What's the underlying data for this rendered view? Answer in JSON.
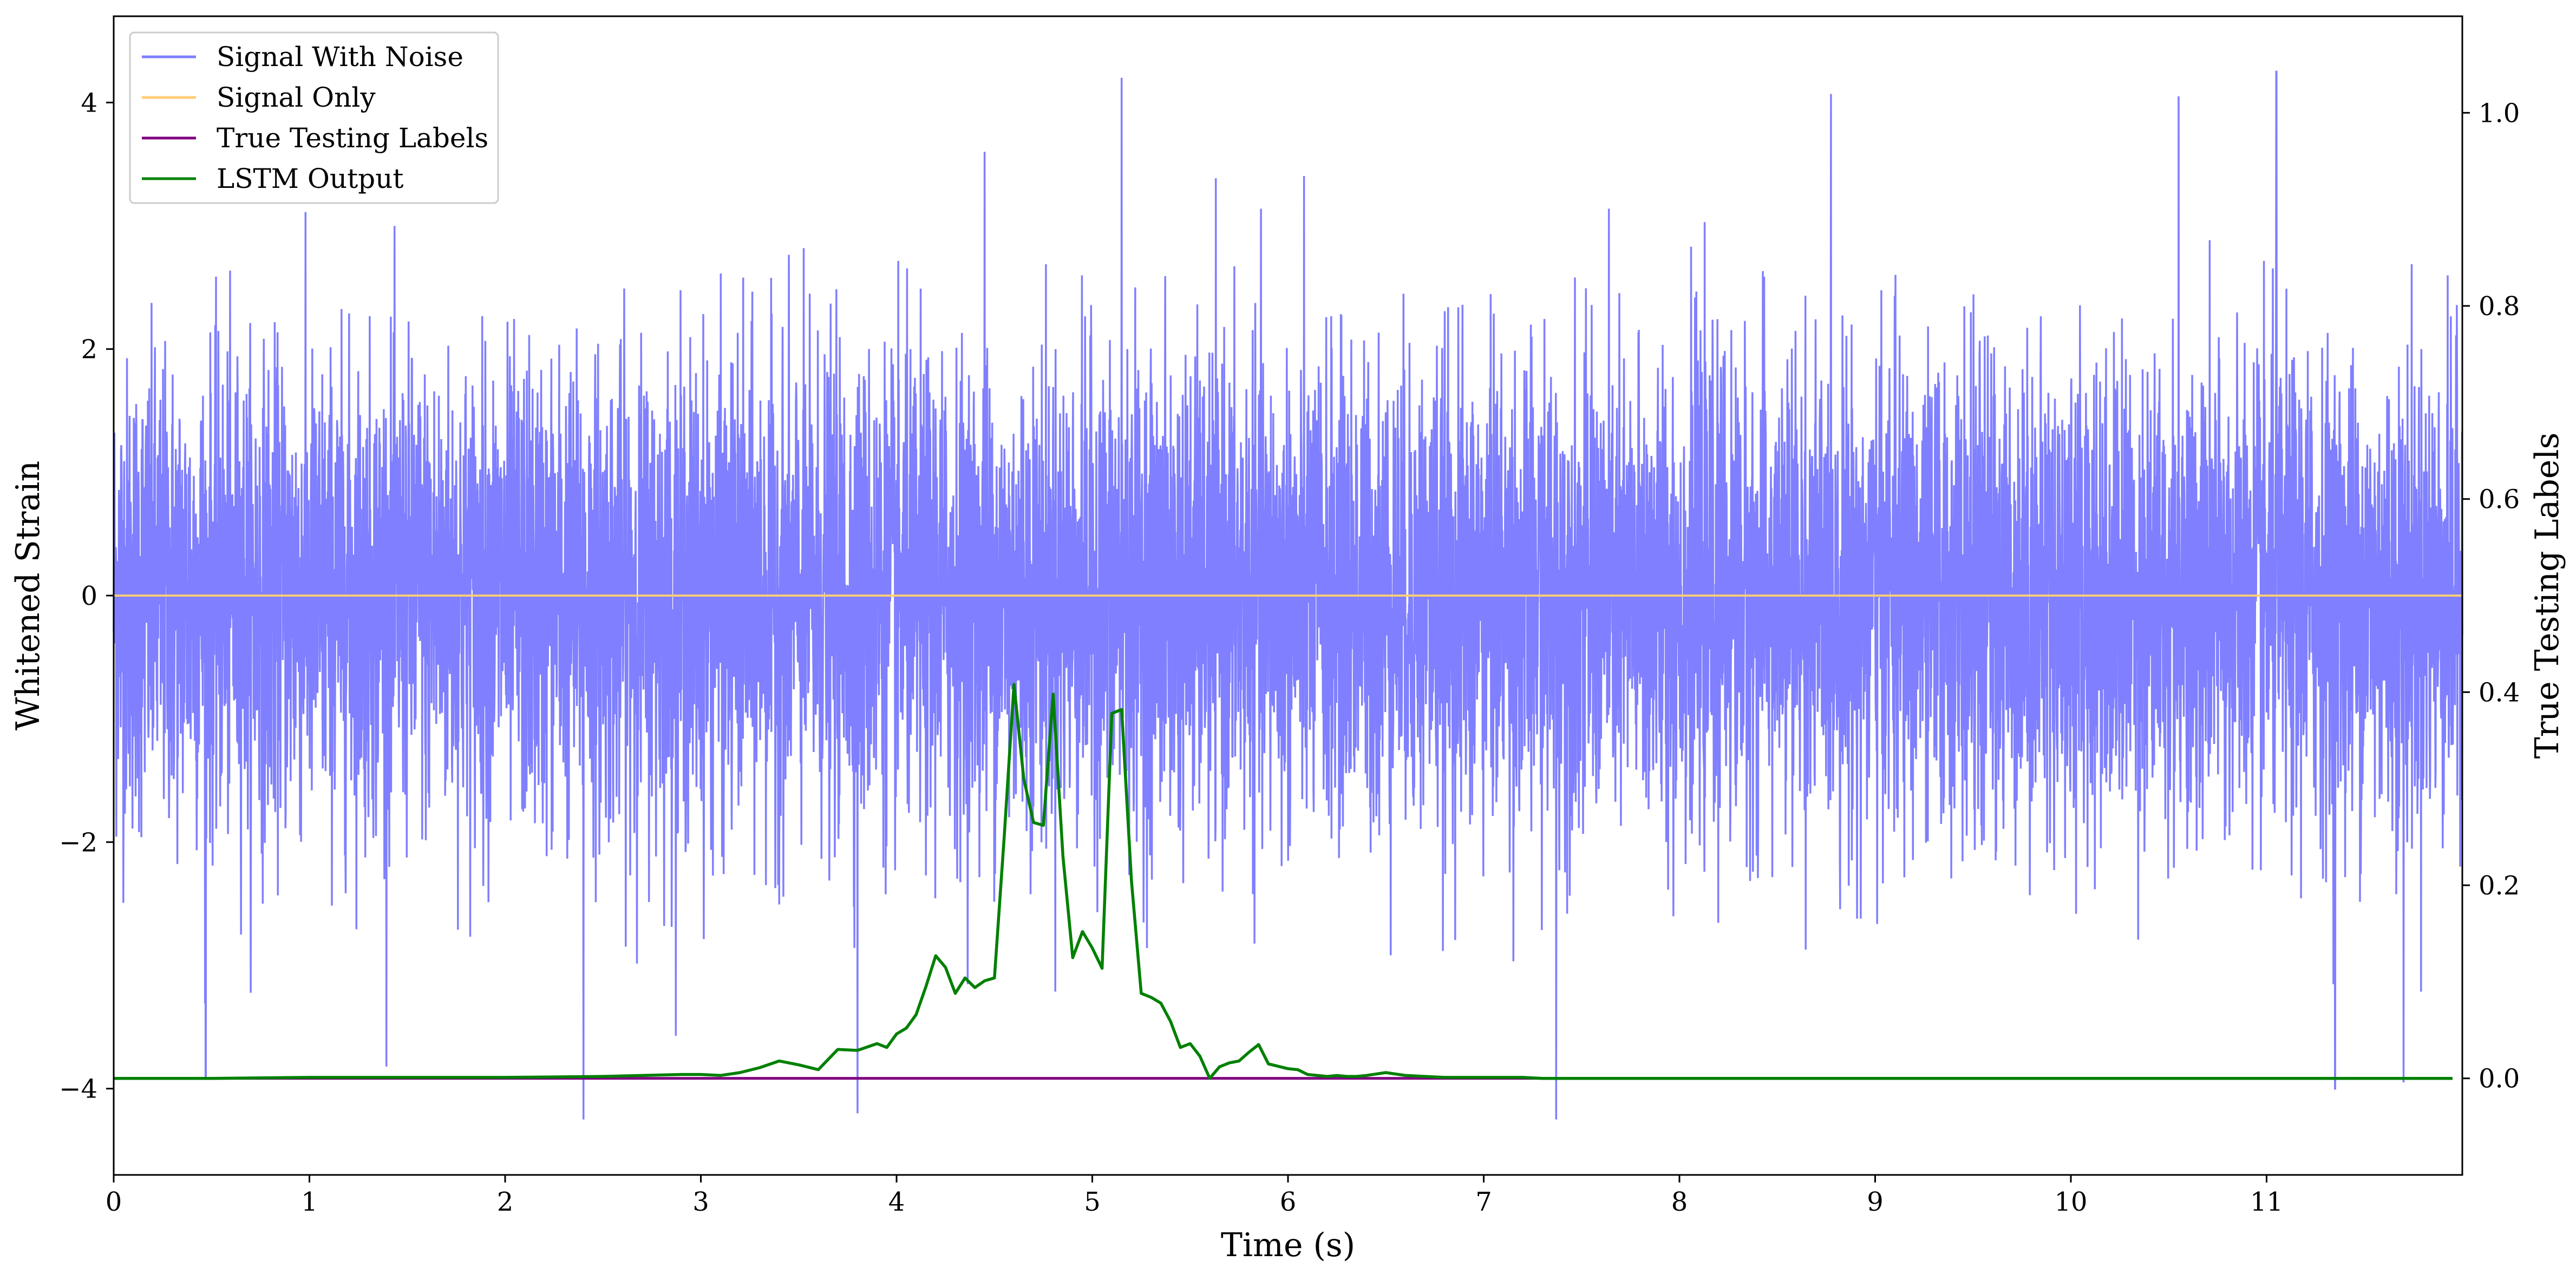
{
  "chart_data": {
    "type": "line",
    "xlabel": "Time (s)",
    "ylabel_left": "Whitened Strain",
    "ylabel_right": "True Testing Labels",
    "xlim": [
      0,
      12
    ],
    "ylim_left": [
      -4.7,
      4.7
    ],
    "ylim_right": [
      -0.1,
      1.1
    ],
    "x_ticks": [
      0,
      1,
      2,
      3,
      4,
      5,
      6,
      7,
      8,
      9,
      10,
      11
    ],
    "y_left_ticks": [
      -4,
      -2,
      0,
      2,
      4
    ],
    "y_left_tick_labels": [
      "−4",
      "−2",
      "0",
      "2",
      "4"
    ],
    "y_right_ticks": [
      0.0,
      0.2,
      0.4,
      0.6,
      0.8,
      1.0
    ],
    "y_right_tick_labels": [
      "0.0",
      "0.2",
      "0.4",
      "0.6",
      "0.8",
      "1.0"
    ],
    "grid": false,
    "legend_position": "top-left",
    "legend": [
      "Signal With Noise",
      "Signal Only",
      "True Testing Labels",
      "LSTM Output"
    ],
    "series": [
      {
        "name": "Signal With Noise",
        "axis": "left",
        "color": "#7f7fff",
        "description_values": "dense gaussian-like noise, typical range -2.5 to 2.5",
        "noise_std": 0.95,
        "x_range": [
          0,
          12
        ],
        "spikes": [
          {
            "x": 0.47,
            "y": -3.9
          },
          {
            "x": 2.4,
            "y": -4.25
          },
          {
            "x": 3.8,
            "y": -4.2
          },
          {
            "x": 4.45,
            "y": 3.6
          },
          {
            "x": 5.15,
            "y": 4.2
          },
          {
            "x": 7.37,
            "y": -4.25
          },
          {
            "x": 11.35,
            "y": -4.0
          },
          {
            "x": 11.7,
            "y": -3.95
          },
          {
            "x": 11.05,
            "y": 4.25
          },
          {
            "x": 10.55,
            "y": 4.05
          }
        ]
      },
      {
        "name": "Signal Only",
        "axis": "left",
        "color": "#ffcc77",
        "x": [
          0,
          12
        ],
        "y": [
          0,
          0
        ]
      },
      {
        "name": "True Testing Labels",
        "axis": "right",
        "color": "#800080",
        "x": [
          0,
          11.95
        ],
        "y": [
          0,
          0
        ]
      },
      {
        "name": "LSTM Output",
        "axis": "right",
        "color": "#008000",
        "x": [
          0.0,
          0.5,
          1.0,
          1.5,
          2.0,
          2.5,
          2.9,
          3.0,
          3.1,
          3.2,
          3.3,
          3.4,
          3.5,
          3.6,
          3.7,
          3.8,
          3.9,
          3.95,
          4.0,
          4.05,
          4.1,
          4.15,
          4.2,
          4.25,
          4.3,
          4.35,
          4.4,
          4.45,
          4.5,
          4.55,
          4.6,
          4.65,
          4.7,
          4.75,
          4.8,
          4.85,
          4.9,
          4.95,
          5.0,
          5.05,
          5.1,
          5.15,
          5.2,
          5.25,
          5.3,
          5.35,
          5.4,
          5.45,
          5.5,
          5.55,
          5.6,
          5.65,
          5.7,
          5.75,
          5.8,
          5.85,
          5.9,
          6.0,
          6.05,
          6.1,
          6.15,
          6.2,
          6.25,
          6.3,
          6.35,
          6.4,
          6.5,
          6.6,
          6.7,
          6.8,
          6.9,
          7.0,
          7.2,
          7.3,
          7.4,
          7.5,
          7.7,
          8.0,
          8.5,
          9.0,
          10.0,
          11.0,
          11.95
        ],
        "y": [
          0.0,
          0.0,
          0.001,
          0.001,
          0.001,
          0.002,
          0.004,
          0.004,
          0.003,
          0.006,
          0.011,
          0.018,
          0.014,
          0.009,
          0.03,
          0.029,
          0.036,
          0.032,
          0.046,
          0.052,
          0.066,
          0.095,
          0.127,
          0.115,
          0.088,
          0.104,
          0.094,
          0.101,
          0.104,
          0.25,
          0.408,
          0.31,
          0.265,
          0.262,
          0.398,
          0.23,
          0.125,
          0.152,
          0.135,
          0.114,
          0.378,
          0.382,
          0.205,
          0.088,
          0.084,
          0.078,
          0.059,
          0.032,
          0.036,
          0.023,
          0.0,
          0.012,
          0.016,
          0.018,
          0.027,
          0.035,
          0.015,
          0.01,
          0.009,
          0.004,
          0.003,
          0.002,
          0.003,
          0.002,
          0.002,
          0.003,
          0.006,
          0.003,
          0.002,
          0.001,
          0.001,
          0.001,
          0.001,
          0.0,
          0.0,
          0.0,
          0.0,
          0.0,
          0.0,
          0.0,
          0.0,
          0.0,
          0.0
        ]
      }
    ]
  }
}
